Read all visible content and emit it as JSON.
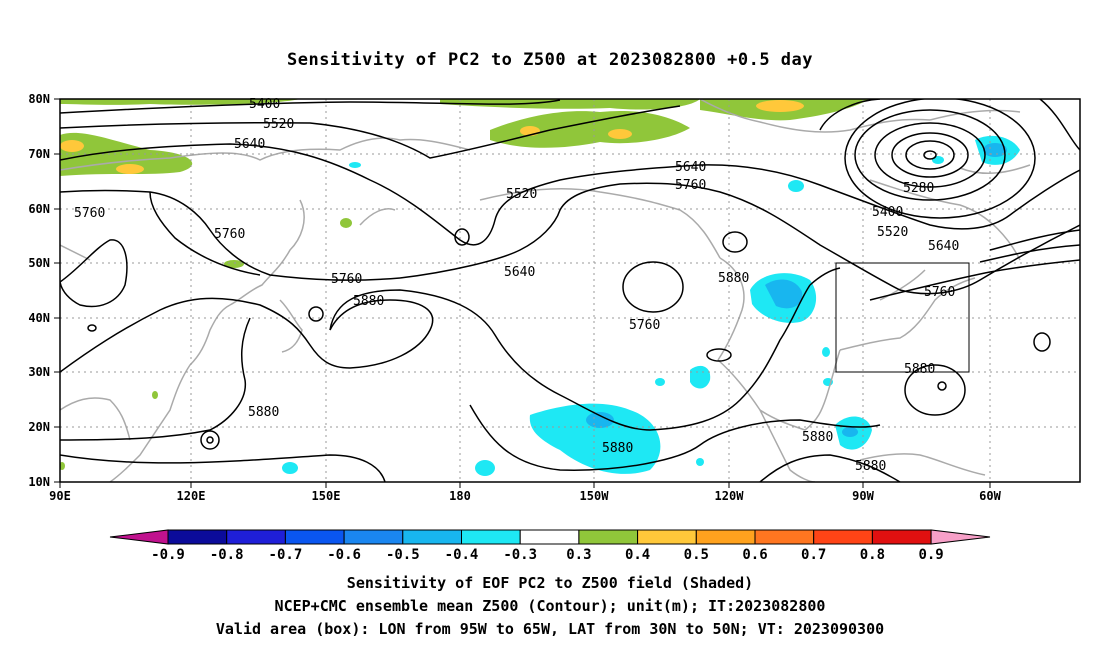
{
  "title": "Sensitivity of PC2 to Z500 at 2023082800 +0.5 day",
  "map": {
    "lon_ticks": [
      "90E",
      "120E",
      "150E",
      "180",
      "150W",
      "120W",
      "90W",
      "60W"
    ],
    "lat_ticks": [
      "80N",
      "70N",
      "60N",
      "50N",
      "40N",
      "30N",
      "20N",
      "10N"
    ],
    "contour_labels": [
      "5400",
      "5520",
      "5640",
      "5760",
      "5880",
      "5280"
    ],
    "box": {
      "lon_west": "95W",
      "lon_east": "65W",
      "lat_south": "30N",
      "lat_north": "50N"
    }
  },
  "colorbar": {
    "labels": [
      "-0.9",
      "-0.8",
      "-0.7",
      "-0.6",
      "-0.5",
      "-0.4",
      "-0.3",
      "0.3",
      "0.4",
      "0.5",
      "0.6",
      "0.7",
      "0.8",
      "0.9"
    ],
    "colors": [
      "#0b0b9a",
      "#1f1fd8",
      "#0a56f0",
      "#1a86f0",
      "#18b6ef",
      "#1ee8f4",
      "#ffffff",
      "#90c63a",
      "#ffc83a",
      "#ffa21e",
      "#ff7620",
      "#ff4416",
      "#e01010"
    ],
    "low_arrow_color": "#c0128e",
    "high_arrow_color": "#f7a0c8"
  },
  "captions": {
    "line1": "Sensitivity of EOF PC2 to Z500 field (Shaded)",
    "line2": "NCEP+CMC ensemble mean Z500 (Contour); unit(m); IT:2023082800",
    "line3": "Valid area (box): LON from 95W to 65W, LAT from 30N to 50N; VT: 2023090300"
  }
}
